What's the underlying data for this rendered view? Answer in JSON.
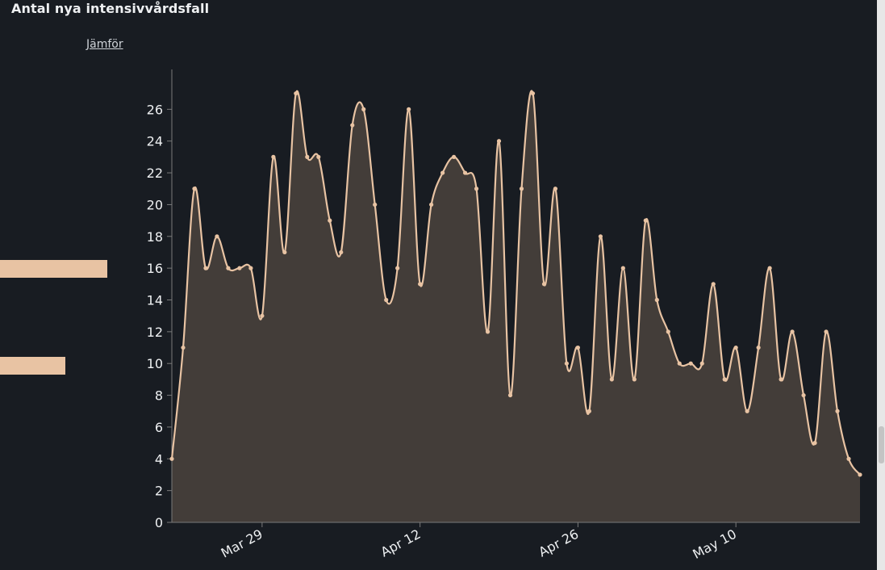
{
  "title": "Antal nya intensivvårdsfall",
  "compare_label": "Jämför",
  "colors": {
    "background": "#181c22",
    "line": "#e8c3a3",
    "area": "#433d39",
    "axis": "#7a7a7a",
    "legend_swatch": "#e8c3a3"
  },
  "chart_data": {
    "type": "area",
    "title": "Antal nya intensivvårdsfall",
    "xlabel": "",
    "ylabel": "",
    "x_start": "2020-03-21",
    "x_end": "2020-05-21",
    "x_ticks": [
      {
        "date": "2020-03-29",
        "label": "Mar 29"
      },
      {
        "date": "2020-04-12",
        "label": "Apr 12"
      },
      {
        "date": "2020-04-26",
        "label": "Apr 26"
      },
      {
        "date": "2020-05-10",
        "label": "May 10"
      }
    ],
    "y_ticks": [
      0,
      2,
      4,
      6,
      8,
      10,
      12,
      14,
      16,
      18,
      20,
      22,
      24,
      26
    ],
    "ylim": [
      0,
      28
    ],
    "grid": false,
    "series": [
      {
        "x": [
          "2020-03-21",
          "2020-03-22",
          "2020-03-23",
          "2020-03-24",
          "2020-03-25",
          "2020-03-26",
          "2020-03-27",
          "2020-03-28",
          "2020-03-29",
          "2020-03-30",
          "2020-03-31",
          "2020-04-01",
          "2020-04-02",
          "2020-04-03",
          "2020-04-04",
          "2020-04-05",
          "2020-04-06",
          "2020-04-07",
          "2020-04-08",
          "2020-04-09",
          "2020-04-10",
          "2020-04-11",
          "2020-04-12",
          "2020-04-13",
          "2020-04-14",
          "2020-04-15",
          "2020-04-16",
          "2020-04-17",
          "2020-04-18",
          "2020-04-19",
          "2020-04-20",
          "2020-04-21",
          "2020-04-22",
          "2020-04-23",
          "2020-04-24",
          "2020-04-25",
          "2020-04-26",
          "2020-04-27",
          "2020-04-28",
          "2020-04-29",
          "2020-04-30",
          "2020-05-01",
          "2020-05-02",
          "2020-05-03",
          "2020-05-04",
          "2020-05-05",
          "2020-05-06",
          "2020-05-07",
          "2020-05-08",
          "2020-05-09",
          "2020-05-10",
          "2020-05-11",
          "2020-05-12",
          "2020-05-13",
          "2020-05-14",
          "2020-05-15",
          "2020-05-16",
          "2020-05-17",
          "2020-05-18",
          "2020-05-19",
          "2020-05-20",
          "2020-05-21"
        ],
        "values": [
          4,
          11,
          21,
          16,
          18,
          16,
          16,
          16,
          13,
          23,
          17,
          27,
          23,
          23,
          19,
          17,
          25,
          26,
          20,
          14,
          16,
          26,
          15,
          20,
          22,
          23,
          22,
          21,
          12,
          24,
          8,
          21,
          27,
          15,
          21,
          10,
          11,
          7,
          18,
          9,
          16,
          9,
          19,
          14,
          12,
          10,
          10,
          10,
          15,
          9,
          11,
          7,
          11,
          16,
          9,
          12,
          8,
          5,
          12,
          7,
          4,
          3
        ]
      }
    ]
  },
  "legend_swatches": [
    {
      "value": 0.155
    },
    {
      "value": 0.095
    }
  ]
}
